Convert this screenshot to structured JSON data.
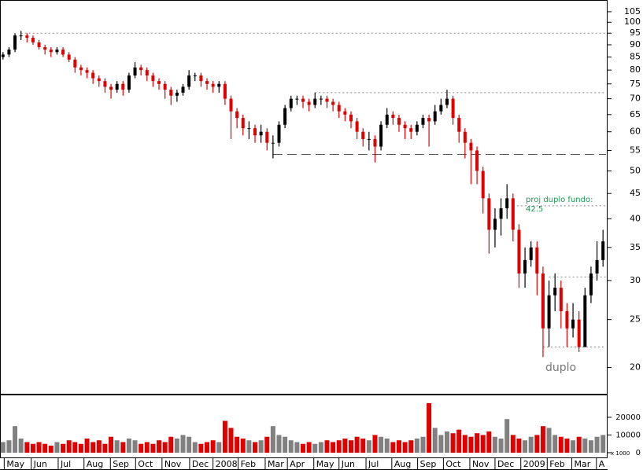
{
  "chart_data": [
    {
      "type": "candlestick",
      "log_scale": true,
      "up_color": "#000000",
      "down_color": "#e00000",
      "x": [
        0,
        1,
        2,
        3,
        4,
        5,
        6,
        7,
        8,
        9,
        10,
        11,
        12,
        13,
        14,
        15,
        16,
        17,
        18,
        19,
        20,
        21,
        22,
        23,
        24,
        25,
        26,
        27,
        28,
        29,
        30,
        31,
        32,
        33,
        34,
        35,
        36,
        37,
        38,
        39,
        40,
        41,
        42,
        43,
        44,
        45,
        46,
        47,
        48,
        49,
        50,
        51,
        52,
        53,
        54,
        55,
        56,
        57,
        58,
        59,
        60,
        61,
        62,
        63,
        64,
        65,
        66,
        67,
        68,
        69,
        70,
        71,
        72,
        73,
        74,
        75,
        76,
        77,
        78,
        79,
        80,
        81,
        82,
        83,
        84,
        85,
        86,
        87,
        88,
        89,
        90,
        91,
        92,
        93,
        94,
        95,
        96,
        97,
        98,
        99,
        100
      ],
      "open": [
        85,
        86,
        88,
        94,
        94,
        93,
        91,
        89,
        88,
        87,
        88,
        86,
        84,
        81,
        80,
        79,
        77,
        76,
        74,
        73,
        75,
        73,
        78,
        81,
        80,
        78,
        76,
        75,
        73,
        71,
        72,
        74,
        78,
        78,
        76,
        75,
        74,
        75,
        70,
        66,
        64,
        61,
        61,
        59,
        60,
        57,
        57,
        62,
        67,
        70,
        70,
        69,
        68,
        70,
        70,
        69,
        68,
        66,
        65,
        63,
        60,
        58,
        58,
        56,
        62,
        65,
        64,
        62,
        61,
        60,
        62,
        64,
        63,
        66,
        68,
        70,
        64,
        60,
        57,
        55,
        50,
        44,
        38,
        40,
        42,
        44,
        38,
        31,
        33,
        35,
        31,
        24,
        28,
        29,
        26,
        24,
        25,
        22,
        28,
        31,
        33
      ],
      "high": [
        87,
        89,
        95,
        96,
        95,
        94,
        92,
        90,
        89,
        89,
        89,
        87,
        85,
        82,
        81,
        80,
        78,
        77,
        75,
        76,
        76,
        79,
        83,
        82,
        81,
        79,
        77,
        76,
        74,
        73,
        75,
        80,
        79,
        79,
        77,
        76,
        76,
        76,
        71,
        67,
        65,
        63,
        62,
        62,
        61,
        59,
        63,
        68,
        71,
        71,
        71,
        70,
        72,
        71,
        71,
        70,
        69,
        67,
        66,
        64,
        61,
        60,
        59,
        63,
        67,
        66,
        65,
        63,
        62,
        63,
        65,
        65,
        68,
        70,
        73,
        71,
        65,
        61,
        58,
        56,
        51,
        45,
        42,
        44,
        47,
        45,
        39,
        35,
        36,
        36,
        32,
        30,
        31,
        30,
        27,
        27,
        26,
        29,
        32,
        36,
        38
      ],
      "low": [
        84,
        85,
        87,
        92,
        91,
        90,
        88,
        86,
        85,
        86,
        85,
        83,
        79,
        78,
        77,
        75,
        74,
        72,
        70,
        72,
        71,
        72,
        77,
        78,
        76,
        74,
        73,
        70,
        68,
        69,
        71,
        73,
        76,
        74,
        73,
        72,
        72,
        68,
        58,
        61,
        59,
        58,
        57,
        57,
        55,
        53,
        56,
        61,
        66,
        68,
        67,
        66,
        67,
        68,
        67,
        66,
        64,
        63,
        61,
        58,
        56,
        55,
        52,
        55,
        61,
        62,
        60,
        58,
        58,
        59,
        61,
        56,
        62,
        65,
        67,
        62,
        57,
        53,
        47,
        47,
        41,
        34,
        35,
        37,
        40,
        36,
        29,
        29,
        32,
        28,
        21,
        22,
        26,
        24,
        22,
        23,
        21.5,
        22,
        27,
        30,
        32
      ],
      "close": [
        86,
        88,
        94,
        94,
        93,
        91,
        89,
        88,
        87,
        88,
        86,
        84,
        81,
        80,
        79,
        77,
        76,
        74,
        73,
        75,
        73,
        78,
        81,
        80,
        78,
        76,
        75,
        73,
        71,
        72,
        74,
        78,
        78,
        76,
        75,
        74,
        75,
        70,
        66,
        64,
        61,
        61,
        59,
        60,
        57,
        57,
        62,
        67,
        70,
        70,
        69,
        68,
        70,
        70,
        69,
        68,
        66,
        65,
        63,
        60,
        58,
        58,
        56,
        62,
        65,
        64,
        62,
        61,
        60,
        62,
        64,
        63,
        66,
        68,
        70,
        64,
        60,
        57,
        55,
        50,
        44,
        38,
        40,
        42,
        44,
        38,
        31,
        33,
        35,
        31,
        24,
        28,
        29,
        26,
        24,
        25,
        22,
        28,
        31,
        33,
        36
      ],
      "xlim": [
        -0.5,
        100.5
      ],
      "ylim": [
        17.76,
        110.9
      ],
      "yticks": [
        20,
        25,
        30,
        35,
        40,
        45,
        50,
        55,
        60,
        65,
        70,
        75,
        80,
        85,
        90,
        95,
        100,
        105
      ],
      "levels": [
        {
          "value": 95,
          "from": 3,
          "style": "dotted"
        },
        {
          "value": 72,
          "from": 52,
          "style": "dotted"
        },
        {
          "value": 54,
          "from": 45,
          "style": "dashed"
        },
        {
          "value": 42.5,
          "from": 85,
          "style": "dotted"
        },
        {
          "value": 30.5,
          "from": 91,
          "style": "dotted"
        },
        {
          "value": 22,
          "from": 90,
          "style": "dotted"
        }
      ],
      "annotations": [
        {
          "text": "proj duplo fundo:",
          "value": 42.5
        },
        {
          "text": "duplo"
        }
      ]
    },
    {
      "type": "bar",
      "color_up": "#808080",
      "color_down": "#e00000",
      "values": [
        6000,
        7000,
        15000,
        8000,
        6000,
        5000,
        6000,
        5000,
        4000,
        6000,
        5000,
        7000,
        6000,
        5000,
        8000,
        6000,
        7000,
        5000,
        9000,
        7000,
        6000,
        8000,
        7000,
        5000,
        6000,
        5000,
        7000,
        6000,
        9000,
        8000,
        10000,
        9000,
        6000,
        5000,
        6000,
        7000,
        6000,
        18000,
        14000,
        9000,
        8000,
        7000,
        6000,
        7000,
        9000,
        15000,
        10000,
        9000,
        7000,
        6000,
        5000,
        6000,
        5000,
        6000,
        7000,
        6000,
        7000,
        8000,
        7000,
        9000,
        8000,
        7000,
        10000,
        9000,
        8000,
        6000,
        7000,
        6000,
        7000,
        8000,
        9000,
        28000,
        14000,
        10000,
        12000,
        11000,
        13000,
        10000,
        9000,
        11000,
        10000,
        12000,
        9000,
        8000,
        19000,
        10000,
        8000,
        7000,
        9000,
        10000,
        15000,
        14000,
        10000,
        9000,
        8000,
        7000,
        9000,
        8000,
        7000,
        9000,
        10000
      ],
      "ylim": [
        -2670,
        32400
      ],
      "yticks": [
        0,
        10000,
        20000
      ],
      "unit_label": "x 1000",
      "xticks": [
        {
          "value": 0.2,
          "label": "May"
        },
        {
          "value": 4.7,
          "label": "Jun"
        },
        {
          "value": 9.2,
          "label": "Jul"
        },
        {
          "value": 13.5,
          "label": "Aug"
        },
        {
          "value": 17.9,
          "label": "Sep"
        },
        {
          "value": 22.1,
          "label": "Oct"
        },
        {
          "value": 26.5,
          "label": "Nov"
        },
        {
          "value": 31.1,
          "label": "Dec"
        },
        {
          "value": 35,
          "label": "2008"
        },
        {
          "value": 39.2,
          "label": "Feb"
        },
        {
          "value": 43.7,
          "label": "Mar"
        },
        {
          "value": 47.4,
          "label": "Apr"
        },
        {
          "value": 51.8,
          "label": "May"
        },
        {
          "value": 56,
          "label": "Jun"
        },
        {
          "value": 60.5,
          "label": "Jul"
        },
        {
          "value": 64.8,
          "label": "Aug"
        },
        {
          "value": 69.1,
          "label": "Sep"
        },
        {
          "value": 73.4,
          "label": "Oct"
        },
        {
          "value": 77.8,
          "label": "Nov"
        },
        {
          "value": 82,
          "label": "Dec"
        },
        {
          "value": 86.3,
          "label": "2009"
        },
        {
          "value": 90.7,
          "label": "Feb"
        },
        {
          "value": 94.8,
          "label": "Mar"
        },
        {
          "value": 98.9,
          "label": "A"
        }
      ]
    }
  ]
}
